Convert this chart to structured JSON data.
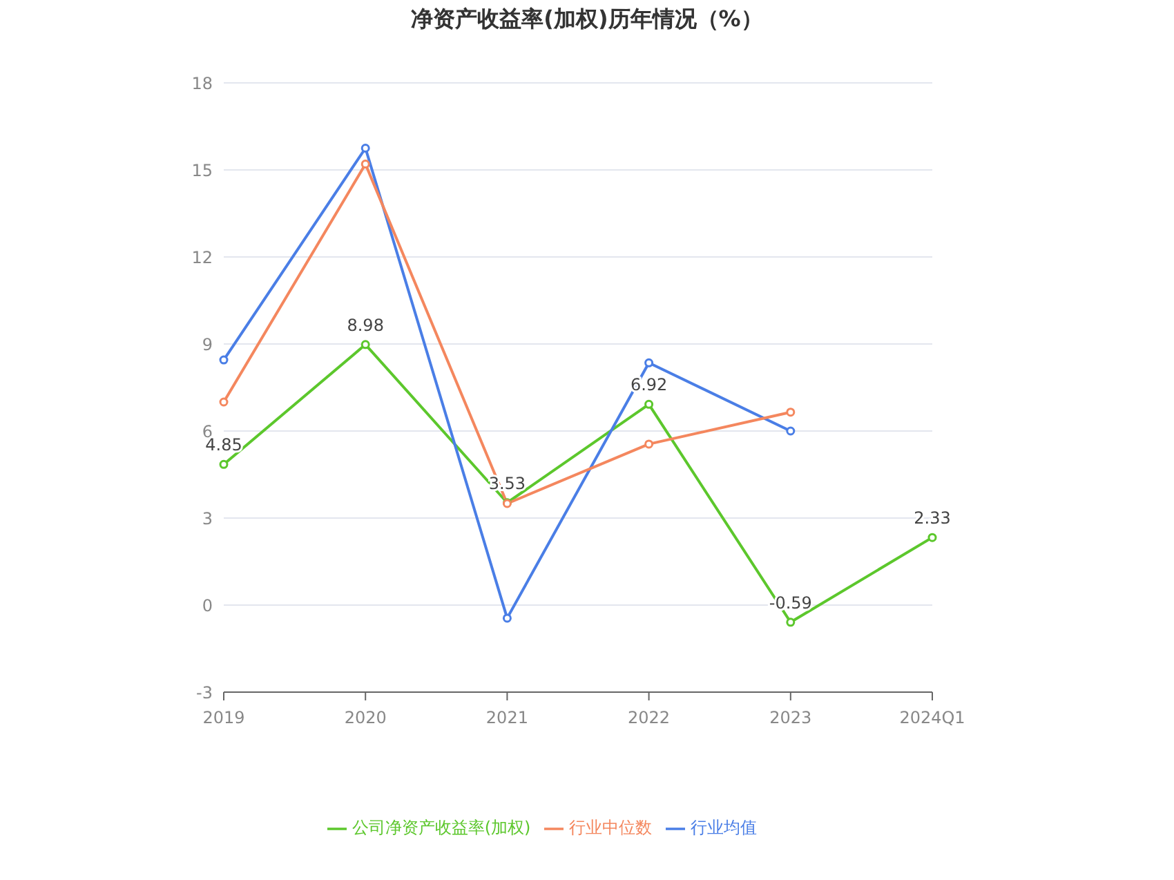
{
  "chart_data": {
    "type": "line",
    "title": "净资产收益率(加权)历年情况（%）",
    "categories": [
      "2019",
      "2020",
      "2021",
      "2022",
      "2023",
      "2024Q1"
    ],
    "series": [
      {
        "name": "公司净资产收益率(加权)",
        "color": "#5cc72c",
        "values": [
          4.85,
          8.98,
          3.53,
          6.92,
          -0.59,
          2.33
        ],
        "value_labels": [
          "4.85",
          "8.98",
          "3.53",
          "6.92",
          "-0.59",
          "2.33"
        ]
      },
      {
        "name": "行业均值",
        "color": "#4a7ee6",
        "values": [
          8.45,
          15.75,
          -0.45,
          8.35,
          6.0,
          null
        ]
      },
      {
        "name": "行业中位数",
        "color": "#f4875e",
        "values": [
          7.0,
          15.2,
          3.5,
          5.55,
          6.65,
          null
        ]
      }
    ],
    "ylim": [
      -3,
      18
    ],
    "yticks": [
      -3,
      0,
      3,
      6,
      9,
      12,
      15,
      18
    ],
    "grid": "y",
    "legend": "bottom",
    "marker": "circle",
    "line_style": "solid"
  }
}
